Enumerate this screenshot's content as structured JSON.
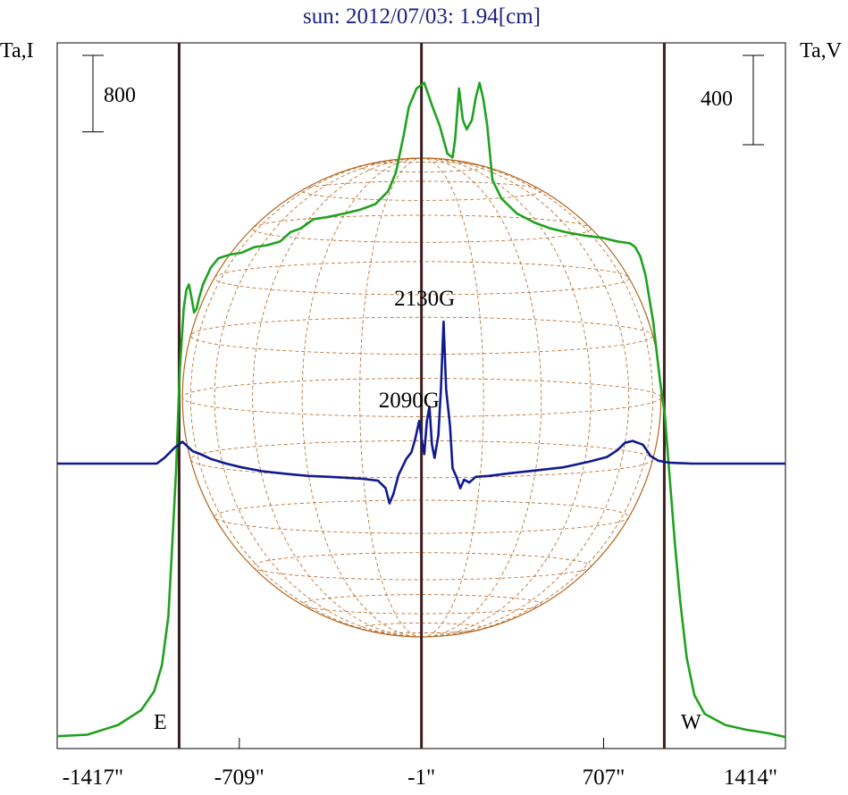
{
  "chart_data": {
    "type": "line",
    "title": "sun: 2012/07/03: 1.94[cm]",
    "ylabel_left": "Ta,I",
    "ylabel_right": "Ta,V",
    "x_ticks": [
      {
        "value": -1417,
        "label": "-1417\""
      },
      {
        "value": -709,
        "label": "-709\""
      },
      {
        "value": -1,
        "label": "-1\""
      },
      {
        "value": 707,
        "label": "707\""
      },
      {
        "value": 1414,
        "label": "1414\""
      }
    ],
    "xlim": [
      -1417,
      1414
    ],
    "limb_lines_x": [
      -943,
      -1,
      943
    ],
    "east_label": "E",
    "west_label": "W",
    "scale_left": {
      "label": "800",
      "span": 800
    },
    "scale_right": {
      "label": "400",
      "span": 400
    },
    "disk": {
      "center_x": 0,
      "radius_arcsec": 930,
      "color": "#b5651d"
    },
    "annotations": [
      {
        "text": "2130G",
        "x": 150
      },
      {
        "text": "2090G",
        "x": 90
      }
    ],
    "series": [
      {
        "key": "I",
        "color": "#1fa21f",
        "axis": "left",
        "points": [
          [
            -1417,
            -20
          ],
          [
            -1300,
            -12
          ],
          [
            -1180,
            40
          ],
          [
            -1090,
            120
          ],
          [
            -1040,
            220
          ],
          [
            -1010,
            360
          ],
          [
            -985,
            620
          ],
          [
            -970,
            1000
          ],
          [
            -955,
            1400
          ],
          [
            -940,
            1950
          ],
          [
            -925,
            2270
          ],
          [
            -915,
            2370
          ],
          [
            -905,
            2400
          ],
          [
            -895,
            2330
          ],
          [
            -885,
            2250
          ],
          [
            -875,
            2270
          ],
          [
            -865,
            2330
          ],
          [
            -850,
            2400
          ],
          [
            -820,
            2490
          ],
          [
            -790,
            2540
          ],
          [
            -745,
            2560
          ],
          [
            -700,
            2570
          ],
          [
            -650,
            2600
          ],
          [
            -600,
            2610
          ],
          [
            -550,
            2630
          ],
          [
            -510,
            2680
          ],
          [
            -470,
            2700
          ],
          [
            -420,
            2750
          ],
          [
            -370,
            2760
          ],
          [
            -300,
            2780
          ],
          [
            -240,
            2800
          ],
          [
            -180,
            2830
          ],
          [
            -130,
            2900
          ],
          [
            -100,
            3000
          ],
          [
            -70,
            3200
          ],
          [
            -50,
            3350
          ],
          [
            -20,
            3450
          ],
          [
            10,
            3480
          ],
          [
            40,
            3360
          ],
          [
            70,
            3250
          ],
          [
            100,
            3100
          ],
          [
            120,
            3080
          ],
          [
            130,
            3180
          ],
          [
            145,
            3450
          ],
          [
            160,
            3280
          ],
          [
            175,
            3230
          ],
          [
            195,
            3280
          ],
          [
            210,
            3400
          ],
          [
            225,
            3480
          ],
          [
            240,
            3390
          ],
          [
            255,
            3250
          ],
          [
            275,
            2960
          ],
          [
            310,
            2860
          ],
          [
            370,
            2780
          ],
          [
            440,
            2730
          ],
          [
            500,
            2700
          ],
          [
            560,
            2680
          ],
          [
            640,
            2660
          ],
          [
            700,
            2650
          ],
          [
            760,
            2630
          ],
          [
            810,
            2620
          ],
          [
            830,
            2600
          ],
          [
            850,
            2550
          ],
          [
            870,
            2450
          ],
          [
            900,
            2200
          ],
          [
            925,
            1900
          ],
          [
            945,
            1700
          ],
          [
            965,
            1350
          ],
          [
            985,
            1000
          ],
          [
            1005,
            700
          ],
          [
            1030,
            400
          ],
          [
            1060,
            200
          ],
          [
            1100,
            100
          ],
          [
            1180,
            40
          ],
          [
            1260,
            15
          ],
          [
            1350,
            -5
          ],
          [
            1414,
            -25
          ]
        ]
      },
      {
        "key": "V",
        "color": "#0f1a8f",
        "axis": "right",
        "points": [
          [
            -1417,
            0
          ],
          [
            -1030,
            0
          ],
          [
            -1000,
            6
          ],
          [
            -960,
            17
          ],
          [
            -930,
            23
          ],
          [
            -890,
            13
          ],
          [
            -860,
            10
          ],
          [
            -820,
            5
          ],
          [
            -760,
            0
          ],
          [
            -700,
            -4
          ],
          [
            -620,
            -8
          ],
          [
            -520,
            -11
          ],
          [
            -440,
            -13
          ],
          [
            -360,
            -14
          ],
          [
            -290,
            -15
          ],
          [
            -230,
            -16
          ],
          [
            -170,
            -18
          ],
          [
            -140,
            -26
          ],
          [
            -125,
            -42
          ],
          [
            -110,
            -32
          ],
          [
            -90,
            -12
          ],
          [
            -60,
            5
          ],
          [
            -40,
            12
          ],
          [
            -25,
            26
          ],
          [
            -10,
            45
          ],
          [
            0,
            25
          ],
          [
            10,
            10
          ],
          [
            20,
            45
          ],
          [
            30,
            60
          ],
          [
            40,
            20
          ],
          [
            50,
            6
          ],
          [
            65,
            30
          ],
          [
            75,
            80
          ],
          [
            85,
            150
          ],
          [
            95,
            78
          ],
          [
            110,
            40
          ],
          [
            120,
            -5
          ],
          [
            135,
            -14
          ],
          [
            150,
            -26
          ],
          [
            165,
            -17
          ],
          [
            185,
            -20
          ],
          [
            210,
            -14
          ],
          [
            260,
            -13
          ],
          [
            350,
            -10
          ],
          [
            450,
            -7
          ],
          [
            550,
            -4
          ],
          [
            650,
            2
          ],
          [
            720,
            7
          ],
          [
            760,
            14
          ],
          [
            790,
            22
          ],
          [
            820,
            24
          ],
          [
            860,
            20
          ],
          [
            890,
            8
          ],
          [
            920,
            3
          ],
          [
            960,
            1
          ],
          [
            1050,
            0
          ],
          [
            1414,
            0
          ]
        ]
      }
    ]
  }
}
